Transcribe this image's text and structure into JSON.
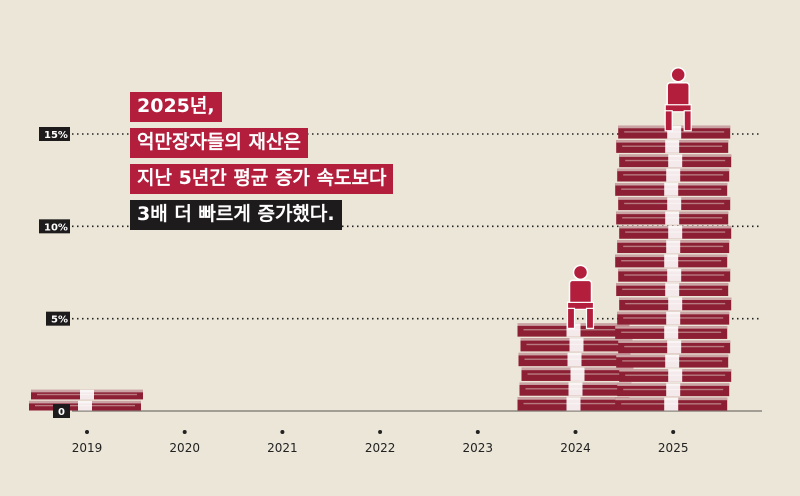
{
  "headline": {
    "lines": [
      {
        "text": "2025년,",
        "style": "red"
      },
      {
        "text": "억만장자들의 재산은",
        "style": "red"
      },
      {
        "text": "지난 5년간 평균 증가 속도보다",
        "style": "red"
      },
      {
        "text": "3배 더 빠르게 증가했다.",
        "style": "dark"
      }
    ]
  },
  "colors": {
    "background": "#ece6d8",
    "accent": "#b31e3c",
    "dark": "#1e1b1c",
    "money": "#8c1f33",
    "money_light": "#d9c4c0"
  },
  "chart_data": {
    "type": "bar",
    "categories": [
      "2019",
      "2020",
      "2021",
      "2022",
      "2023",
      "2024",
      "2025"
    ],
    "values": [
      1.2,
      0,
      0,
      0,
      0,
      4.8,
      15.5
    ],
    "yticks": [
      {
        "value": 0,
        "label": "0"
      },
      {
        "value": 5,
        "label": "5%"
      },
      {
        "value": 10,
        "label": "10%"
      },
      {
        "value": 15,
        "label": "15%"
      }
    ],
    "ylim": [
      0,
      15
    ],
    "grid": true,
    "title": "",
    "xlabel": "",
    "ylabel": "",
    "figures": [
      "2024",
      "2025"
    ]
  }
}
